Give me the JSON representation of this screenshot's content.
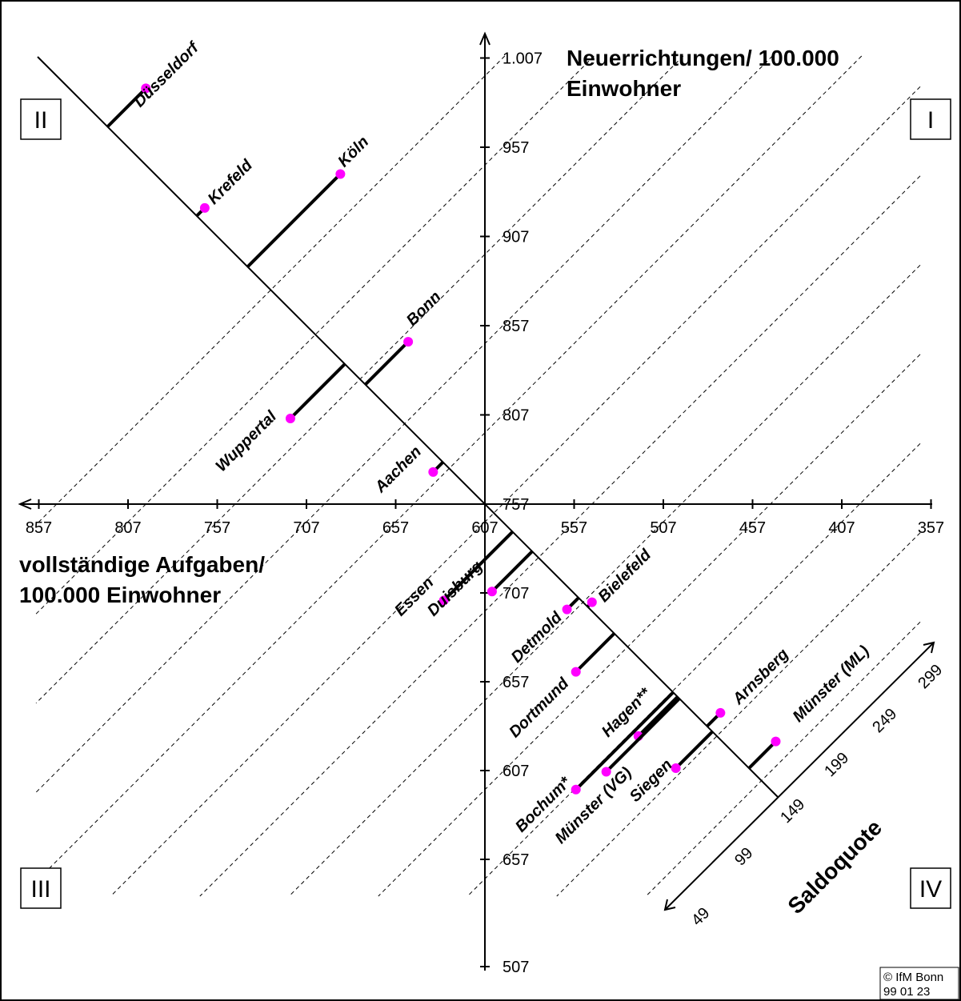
{
  "chart_data": {
    "type": "scatter",
    "y_axis": {
      "title": [
        "Neuerrichtungen/ 100.000",
        "Einwohner"
      ],
      "ticks": [
        "1.007",
        "957",
        "907",
        "857",
        "807",
        "757"
      ]
    },
    "x_axis": {
      "title": [
        "vollständige Aufgaben/",
        "100.000 Einwohner"
      ],
      "ticks": [
        "857",
        "807",
        "757",
        "707",
        "657",
        "607",
        "557",
        "507",
        "457",
        "407",
        "357"
      ]
    },
    "lower_y_ticks": [
      "707",
      "657",
      "607",
      "657",
      "507"
    ],
    "saldo_axis": {
      "title": "Saldoquote",
      "ticks": [
        "49",
        "99",
        "149",
        "199",
        "249",
        "299"
      ]
    },
    "quadrants": [
      "I",
      "II",
      "III",
      "IV"
    ],
    "copyright": [
      "© IfM Bonn",
      "99  01  23"
    ],
    "points": [
      {
        "city": "Düsseldorf",
        "aufgaben": 797,
        "neuerrichtungen": 990,
        "saldo": 193
      },
      {
        "city": "Krefeld",
        "aufgaben": 764,
        "neuerrichtungen": 923,
        "saldo": 159
      },
      {
        "city": "Köln",
        "aufgaben": 688,
        "neuerrichtungen": 942,
        "saldo": 254
      },
      {
        "city": "Bonn",
        "aufgaben": 650,
        "neuerrichtungen": 848,
        "saldo": 198
      },
      {
        "city": "Wuppertal",
        "aufgaben": 716,
        "neuerrichtungen": 805,
        "saldo": 89
      },
      {
        "city": "Aachen",
        "aufgaben": 636,
        "neuerrichtungen": 775,
        "saldo": 139
      },
      {
        "city": "Essen",
        "aufgaben": 630,
        "neuerrichtungen": 703,
        "saldo": 73
      },
      {
        "city": "Duisburg",
        "aufgaben": 603,
        "neuerrichtungen": 708,
        "saldo": 105
      },
      {
        "city": "Detmold",
        "aufgaben": 561,
        "neuerrichtungen": 698,
        "saldo": 137
      },
      {
        "city": "Bielefeld",
        "aufgaben": 547,
        "neuerrichtungen": 702,
        "saldo": 155
      },
      {
        "city": "Dortmund",
        "aufgaben": 556,
        "neuerrichtungen": 663,
        "saldo": 107
      },
      {
        "city": "Hagen**",
        "aufgaben": 521,
        "neuerrichtungen": 627,
        "saldo": 106
      },
      {
        "city": "Arnsberg",
        "aufgaben": 475,
        "neuerrichtungen": 640,
        "saldo": 165
      },
      {
        "city": "Münster (ML)",
        "aufgaben": 444,
        "neuerrichtungen": 624,
        "saldo": 180
      },
      {
        "city": "Bochum*",
        "aufgaben": 556,
        "neuerrichtungen": 597,
        "saldo": 41
      },
      {
        "city": "Münster (VG)",
        "aufgaben": 539,
        "neuerrichtungen": 607,
        "saldo": 68
      },
      {
        "city": "Siegen",
        "aufgaben": 500,
        "neuerrichtungen": 609,
        "saldo": 109
      }
    ]
  }
}
